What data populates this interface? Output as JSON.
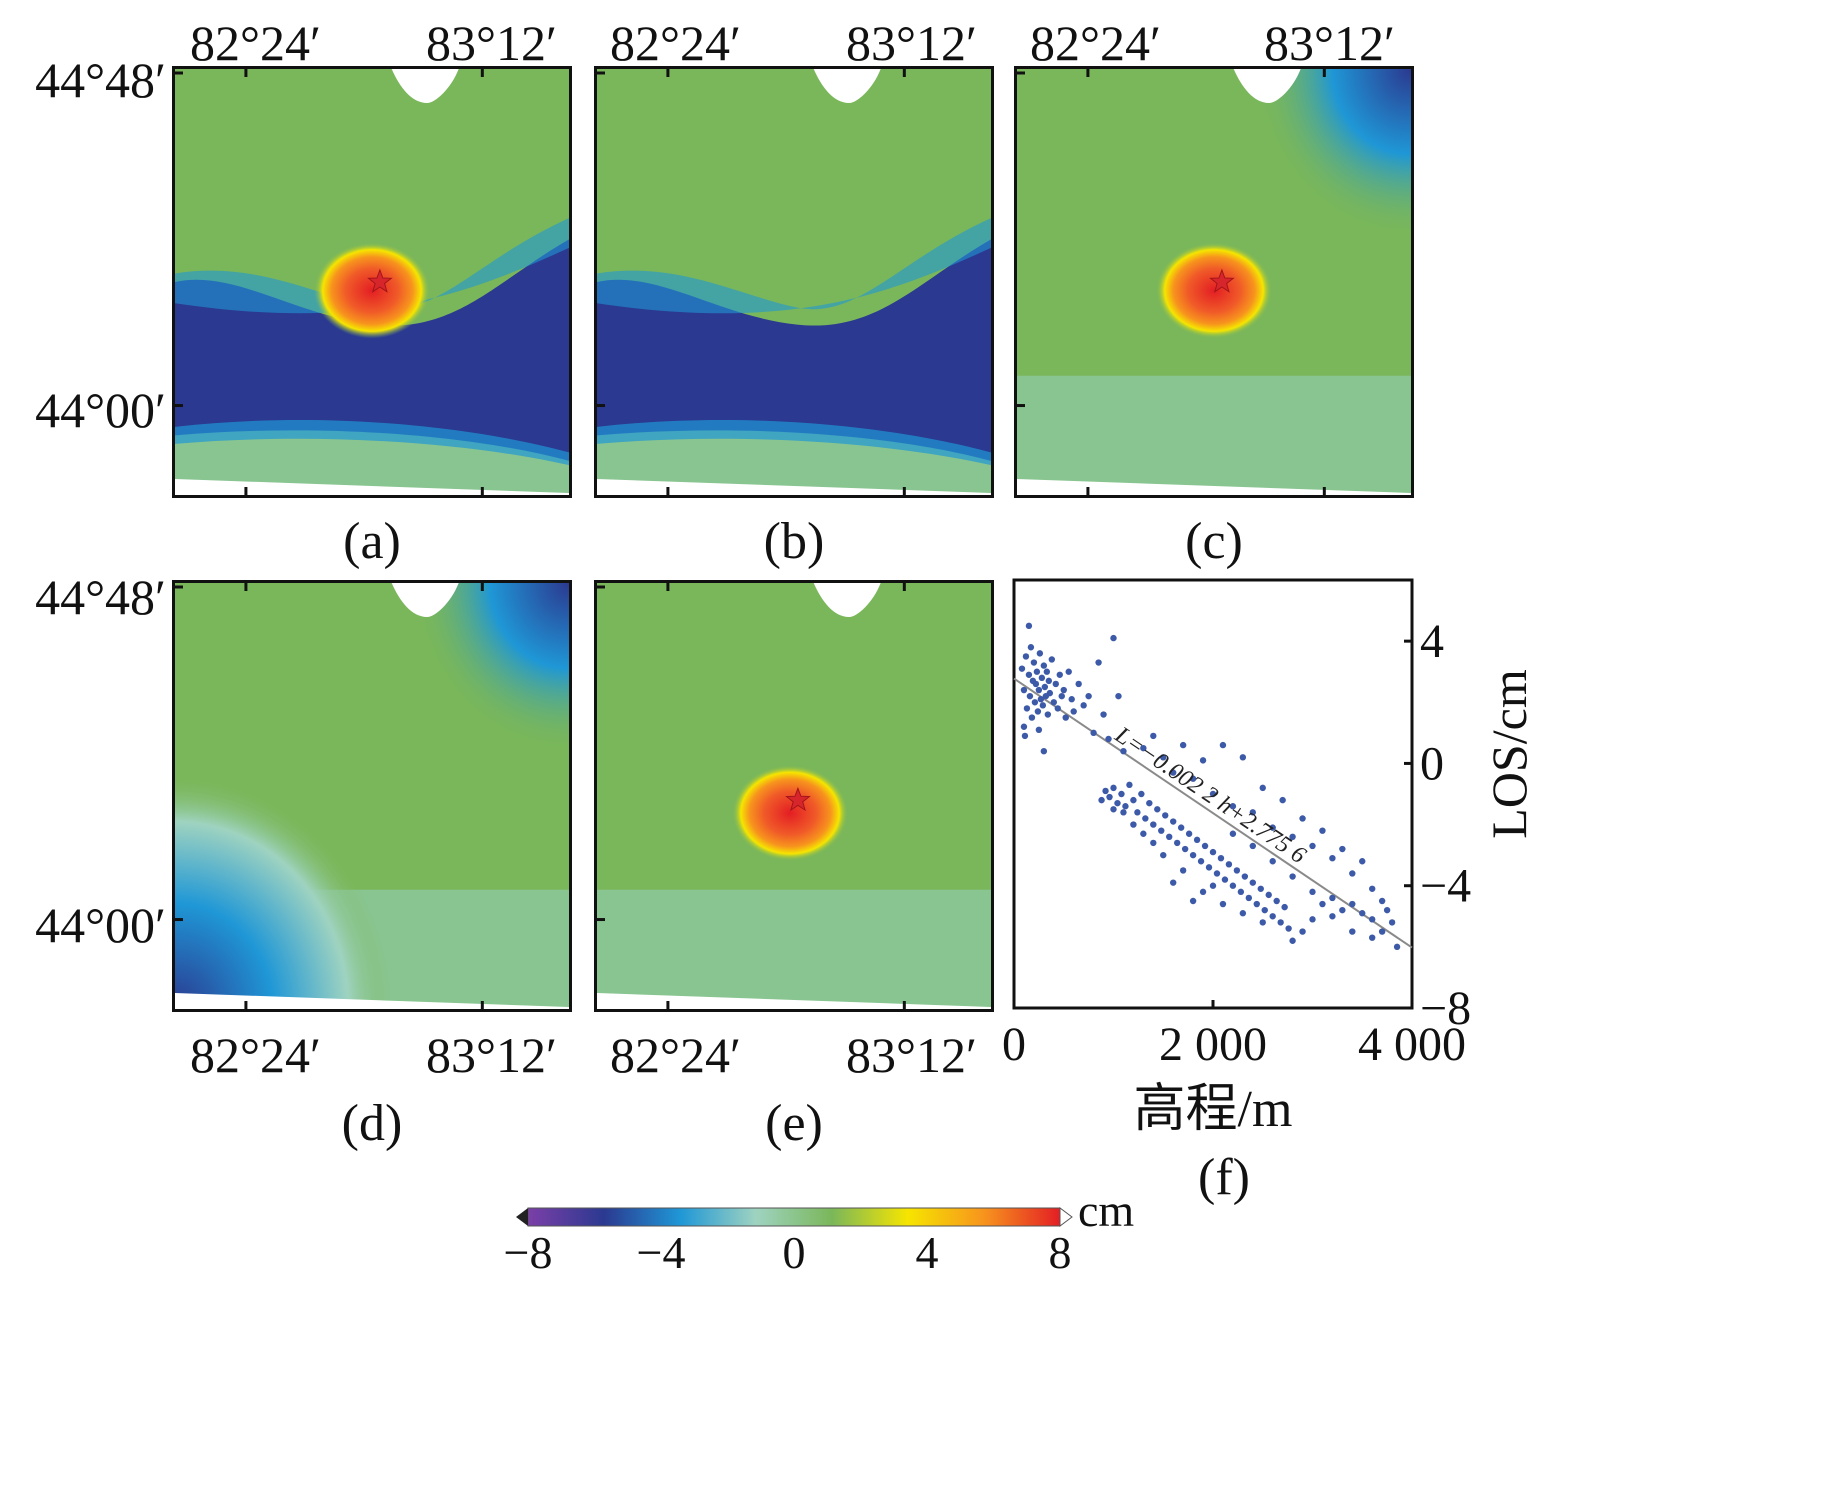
{
  "map_axes": {
    "lon_labels": [
      "82°24′",
      "83°12′"
    ],
    "lat_labels": [
      "44°48′",
      "44°00′"
    ]
  },
  "panels": [
    {
      "label": "(a)",
      "features": [
        "deformation-lobe",
        "earthquake-star",
        "terrain-negative-band",
        "nodata-notch"
      ]
    },
    {
      "label": "(b)",
      "features": [
        "terrain-negative-band",
        "nodata-notch"
      ]
    },
    {
      "label": "(c)",
      "features": [
        "deformation-lobe",
        "earthquake-star",
        "negative-corner-ne",
        "nodata-notch"
      ]
    },
    {
      "label": "(d)",
      "features": [
        "negative-corner-sw",
        "negative-corner-ne",
        "nodata-notch"
      ]
    },
    {
      "label": "(e)",
      "features": [
        "deformation-lobe",
        "earthquake-star",
        "nodata-notch"
      ]
    },
    {
      "label": "(f)",
      "features": [
        "scatter"
      ]
    }
  ],
  "colorbar": {
    "unit": "cm",
    "ticks": [
      "−8",
      "−4",
      "0",
      "4",
      "8"
    ],
    "range": [
      -8,
      8
    ],
    "colors": [
      "#7b3fa8",
      "#2b3990",
      "#1f97d6",
      "#9fd3c0",
      "#7ab75a",
      "#f6e500",
      "#f7941d",
      "#e31e24"
    ]
  },
  "chart_data": {
    "type": "scatter",
    "xlabel": "高程/m",
    "ylabel": "LOS/cm",
    "xlim": [
      0,
      4000
    ],
    "ylim": [
      -8,
      6
    ],
    "x_ticks": [
      "0",
      "2 000",
      "4 000"
    ],
    "y_ticks": [
      "4",
      "0",
      "−4",
      "−8"
    ],
    "x_tick_values": [
      0,
      2000,
      4000
    ],
    "y_tick_values": [
      4,
      0,
      -4,
      -8
    ],
    "point_color": "#3d5aa8",
    "fit": {
      "slope": -0.0022,
      "intercept": 2.7756,
      "label": "L=−0.002 2 h+2.775 6"
    },
    "points": [
      [
        80,
        3.1
      ],
      [
        100,
        2.4
      ],
      [
        120,
        3.5
      ],
      [
        130,
        1.8
      ],
      [
        150,
        2.9
      ],
      [
        160,
        2.2
      ],
      [
        170,
        3.8
      ],
      [
        180,
        1.5
      ],
      [
        190,
        2.7
      ],
      [
        200,
        3.3
      ],
      [
        210,
        2.0
      ],
      [
        220,
        2.6
      ],
      [
        230,
        3.0
      ],
      [
        240,
        1.7
      ],
      [
        250,
        2.4
      ],
      [
        260,
        3.6
      ],
      [
        270,
        2.1
      ],
      [
        280,
        2.8
      ],
      [
        290,
        1.9
      ],
      [
        300,
        3.2
      ],
      [
        310,
        2.5
      ],
      [
        320,
        2.2
      ],
      [
        330,
        3.0
      ],
      [
        340,
        1.6
      ],
      [
        350,
        2.7
      ],
      [
        360,
        2.3
      ],
      [
        380,
        3.4
      ],
      [
        400,
        2.0
      ],
      [
        420,
        2.6
      ],
      [
        440,
        1.8
      ],
      [
        150,
        4.5
      ],
      [
        100,
        1.2
      ],
      [
        110,
        0.9
      ],
      [
        250,
        1.1
      ],
      [
        300,
        0.4
      ],
      [
        460,
        2.9
      ],
      [
        480,
        2.2
      ],
      [
        500,
        2.4
      ],
      [
        520,
        1.5
      ],
      [
        550,
        3.0
      ],
      [
        580,
        2.1
      ],
      [
        600,
        1.7
      ],
      [
        650,
        2.6
      ],
      [
        700,
        1.9
      ],
      [
        750,
        2.2
      ],
      [
        800,
        1.0
      ],
      [
        850,
        3.3
      ],
      [
        900,
        1.6
      ],
      [
        950,
        0.8
      ],
      [
        1000,
        4.1
      ],
      [
        1050,
        2.2
      ],
      [
        1100,
        0.4
      ],
      [
        880,
        -1.2
      ],
      [
        920,
        -0.9
      ],
      [
        960,
        -1.1
      ],
      [
        1000,
        -0.8
      ],
      [
        1040,
        -1.3
      ],
      [
        1080,
        -1.0
      ],
      [
        1120,
        -1.4
      ],
      [
        1160,
        -0.7
      ],
      [
        1200,
        -1.2
      ],
      [
        1240,
        -1.6
      ],
      [
        1280,
        -1.0
      ],
      [
        1320,
        -1.8
      ],
      [
        1360,
        -1.3
      ],
      [
        1400,
        -2.0
      ],
      [
        1440,
        -1.5
      ],
      [
        1480,
        -2.2
      ],
      [
        1520,
        -1.7
      ],
      [
        1560,
        -2.4
      ],
      [
        1600,
        -1.9
      ],
      [
        1640,
        -2.6
      ],
      [
        1680,
        -2.1
      ],
      [
        1720,
        -2.8
      ],
      [
        1760,
        -2.3
      ],
      [
        1800,
        -3.0
      ],
      [
        1840,
        -2.5
      ],
      [
        1880,
        -3.2
      ],
      [
        1920,
        -2.7
      ],
      [
        1960,
        -3.4
      ],
      [
        2000,
        -2.9
      ],
      [
        2040,
        -3.6
      ],
      [
        2080,
        -3.1
      ],
      [
        2120,
        -3.8
      ],
      [
        2160,
        -3.3
      ],
      [
        2200,
        -4.0
      ],
      [
        2240,
        -3.5
      ],
      [
        2280,
        -4.2
      ],
      [
        2320,
        -3.7
      ],
      [
        2360,
        -4.4
      ],
      [
        2400,
        -3.9
      ],
      [
        2440,
        -4.6
      ],
      [
        2480,
        -4.1
      ],
      [
        2520,
        -4.8
      ],
      [
        2560,
        -4.3
      ],
      [
        2600,
        -5.0
      ],
      [
        2640,
        -4.5
      ],
      [
        2680,
        -5.2
      ],
      [
        2720,
        -4.7
      ],
      [
        2760,
        -5.4
      ],
      [
        1300,
        0.5
      ],
      [
        1400,
        0.9
      ],
      [
        1500,
        0.2
      ],
      [
        1600,
        -0.3
      ],
      [
        1700,
        0.6
      ],
      [
        1800,
        -0.5
      ],
      [
        1900,
        0.1
      ],
      [
        2000,
        -1.0
      ],
      [
        2100,
        0.6
      ],
      [
        2200,
        -1.4
      ],
      [
        2300,
        0.2
      ],
      [
        2400,
        -1.6
      ],
      [
        2500,
        -0.8
      ],
      [
        2600,
        -2.1
      ],
      [
        2700,
        -1.2
      ],
      [
        2800,
        -2.4
      ],
      [
        2900,
        -1.8
      ],
      [
        3000,
        -2.7
      ],
      [
        3100,
        -2.2
      ],
      [
        3200,
        -3.1
      ],
      [
        3300,
        -2.8
      ],
      [
        3400,
        -3.6
      ],
      [
        3500,
        -3.2
      ],
      [
        3600,
        -4.1
      ],
      [
        3700,
        -4.5
      ],
      [
        3800,
        -5.2
      ],
      [
        3850,
        -6.0
      ],
      [
        3300,
        -4.8
      ],
      [
        3100,
        -4.6
      ],
      [
        2900,
        -5.5
      ],
      [
        2800,
        -5.8
      ],
      [
        3000,
        -5.1
      ],
      [
        3200,
        -5.0
      ],
      [
        3400,
        -5.5
      ],
      [
        3500,
        -4.9
      ],
      [
        3600,
        -5.7
      ],
      [
        2500,
        -5.2
      ],
      [
        2300,
        -4.9
      ],
      [
        2100,
        -4.6
      ],
      [
        1900,
        -4.2
      ],
      [
        1700,
        -3.5
      ],
      [
        1500,
        -3.0
      ],
      [
        1400,
        -2.6
      ],
      [
        1300,
        -2.3
      ],
      [
        1200,
        -2.0
      ],
      [
        1100,
        -1.6
      ],
      [
        1000,
        -1.5
      ],
      [
        1600,
        -3.9
      ],
      [
        1800,
        -4.5
      ],
      [
        2000,
        -4.0
      ],
      [
        2200,
        -2.3
      ],
      [
        2400,
        -2.7
      ],
      [
        2600,
        -3.2
      ],
      [
        2800,
        -3.7
      ],
      [
        3000,
        -4.2
      ],
      [
        3200,
        -4.4
      ],
      [
        3400,
        -4.6
      ],
      [
        3600,
        -5.1
      ],
      [
        3700,
        -5.5
      ],
      [
        3750,
        -4.8
      ]
    ]
  }
}
